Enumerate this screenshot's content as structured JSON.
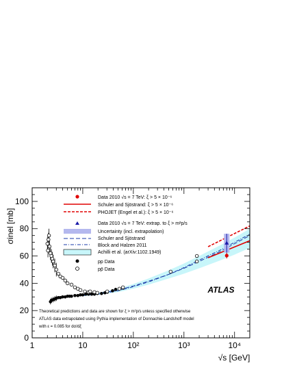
{
  "chart_data": {
    "type": "scatter",
    "xlabel": "√s [GeV]",
    "ylabel": "σinel [mb]",
    "xscale": "log",
    "xlim": [
      1,
      20000
    ],
    "ylim": [
      0,
      110
    ],
    "yticks": [
      0,
      20,
      40,
      60,
      80,
      100
    ],
    "xticks": [
      {
        "value": 1,
        "label": "1"
      },
      {
        "value": 10,
        "label": "10"
      },
      {
        "value": 100,
        "label": "10²"
      },
      {
        "value": 1000,
        "label": "10³"
      },
      {
        "value": 10000,
        "label": "10⁴"
      }
    ],
    "grid": false,
    "watermark": "ATLAS",
    "legend": {
      "placement": "top-center",
      "entries": [
        {
          "key": "data2010_xi",
          "label": "Data 2010 √s = 7 TeV: ξ > 5 × 10⁻⁶"
        },
        {
          "key": "schuler",
          "label": "Schuler and Sjöstrand: ξ > 5 × 10⁻⁶"
        },
        {
          "key": "phojet",
          "label": "PHOJET (Engel et al.): ξ > 5 × 10⁻⁶"
        },
        {
          "key": "data2010_extrap",
          "label": "Data 2010 √s = 7 TeV: extrap. to ξ > m²p/s"
        },
        {
          "key": "uncertainty",
          "label": "Uncertainty (incl. extrapolation)"
        },
        {
          "key": "schuler_full",
          "label": "Schuler and Sjöstrand"
        },
        {
          "key": "block_halzen",
          "label": "Block and Halzen 2011"
        },
        {
          "key": "achilli",
          "label": "Achilli et al. (arXiv:1102.1949)"
        },
        {
          "key": "pp",
          "label": "pp Data"
        },
        {
          "key": "ppbar",
          "label": "pp̄ Data"
        }
      ]
    },
    "annotations": [
      "Theoretical predictions and data are shown for ξ > m²p/s unless specified otherwise",
      "ATLAS data extrapolated using Pythia implementation of Donnachie-Landshoff model",
      "with ε = 0.085 for dσ/dξ"
    ],
    "series": [
      {
        "name": "pp Data",
        "marker": "filled-circle",
        "x": [
          2.3,
          2.4,
          2.6,
          2.8,
          3.0,
          3.3,
          3.6,
          4.0,
          4.5,
          5.0,
          5.5,
          6.0,
          7.0,
          8.0,
          9.0,
          10.0,
          11.5,
          13.0,
          15.0,
          17.0,
          19.4,
          23.5,
          27.4,
          30.6,
          38.8,
          44.7,
          52.8,
          62.5
        ],
        "y": [
          26.5,
          27.5,
          28.0,
          28.5,
          29.0,
          29.5,
          29.5,
          30.0,
          30.0,
          30.5,
          30.5,
          30.5,
          31.0,
          31.0,
          31.5,
          31.5,
          32.0,
          32.0,
          32.0,
          32.0,
          32.5,
          32.5,
          33.0,
          33.5,
          34.5,
          35.5,
          36.0,
          36.5
        ]
      },
      {
        "name": "pp̄ Data",
        "marker": "open-circle",
        "x": [
          2.0,
          2.05,
          2.1,
          2.15,
          2.2,
          2.3,
          2.4,
          2.5,
          2.6,
          2.8,
          3.0,
          3.3,
          3.6,
          4.0,
          4.5,
          5.0,
          6.0,
          7.0,
          8.0,
          9.0,
          11.0,
          13.0,
          14.0,
          17.0,
          19.4,
          30.4,
          53.0,
          62.3,
          546,
          1800,
          1800
        ],
        "y": [
          69,
          64,
          72,
          75,
          67,
          62,
          60,
          58,
          56,
          53,
          50,
          47,
          45,
          44,
          42,
          40,
          39,
          37,
          36,
          35,
          34,
          33.5,
          34,
          33.5,
          33,
          34,
          36,
          37,
          48.5,
          56,
          60
        ]
      },
      {
        "name": "Data 2010 √s = 7 TeV: ξ > 5 × 10⁻⁶",
        "marker": "red-dot",
        "x": [
          7000
        ],
        "y": [
          60.3
        ],
        "yerr": [
          2.1
        ]
      },
      {
        "name": "Data 2010 √s = 7 TeV: extrap. to ξ > m²p/s",
        "marker": "blue-triangle",
        "x": [
          7000
        ],
        "y": [
          69.4
        ],
        "yerr": [
          6.9
        ]
      },
      {
        "name": "Schuler and Sjöstrand: ξ > 5 × 10⁻⁶",
        "line": "red-solid",
        "x": [
          3000,
          20000
        ],
        "y": [
          58.7,
          71.2
        ]
      },
      {
        "name": "PHOJET (Engel et al.): ξ > 5 × 10⁻⁶",
        "line": "red-dashed",
        "x": [
          3000,
          20000
        ],
        "y": [
          66.8,
          82.0
        ]
      },
      {
        "name": "Schuler and Sjöstrand",
        "line": "blue-dashed",
        "x": [
          10,
          20,
          50,
          100,
          200,
          500,
          1000,
          2000,
          5000,
          10000,
          20000
        ],
        "y": [
          31.5,
          32.5,
          35.0,
          38.0,
          41.5,
          46.5,
          51.0,
          56.0,
          63.0,
          69.0,
          75.0
        ]
      },
      {
        "name": "Block and Halzen 2011",
        "line": "blue-dashdot",
        "x": [
          10,
          20,
          50,
          100,
          200,
          500,
          1000,
          2000,
          5000,
          10000,
          20000
        ],
        "y": [
          31.0,
          32.0,
          34.5,
          37.5,
          41.0,
          46.5,
          51.5,
          57.0,
          64.0,
          70.0,
          76.0
        ]
      },
      {
        "name": "Achilli et al. (arXiv:1102.1949)",
        "band": "cyan",
        "x": [
          10,
          20,
          50,
          100,
          200,
          500,
          1000,
          2000,
          5000,
          10000,
          20000
        ],
        "y_low": [
          30.5,
          31.5,
          33.5,
          36.0,
          39.0,
          43.5,
          47.0,
          51.0,
          56.5,
          61.0,
          66.0
        ],
        "y_high": [
          31.5,
          33.0,
          36.0,
          39.5,
          43.5,
          49.5,
          54.5,
          60.0,
          67.5,
          73.5,
          80.0
        ]
      }
    ]
  }
}
